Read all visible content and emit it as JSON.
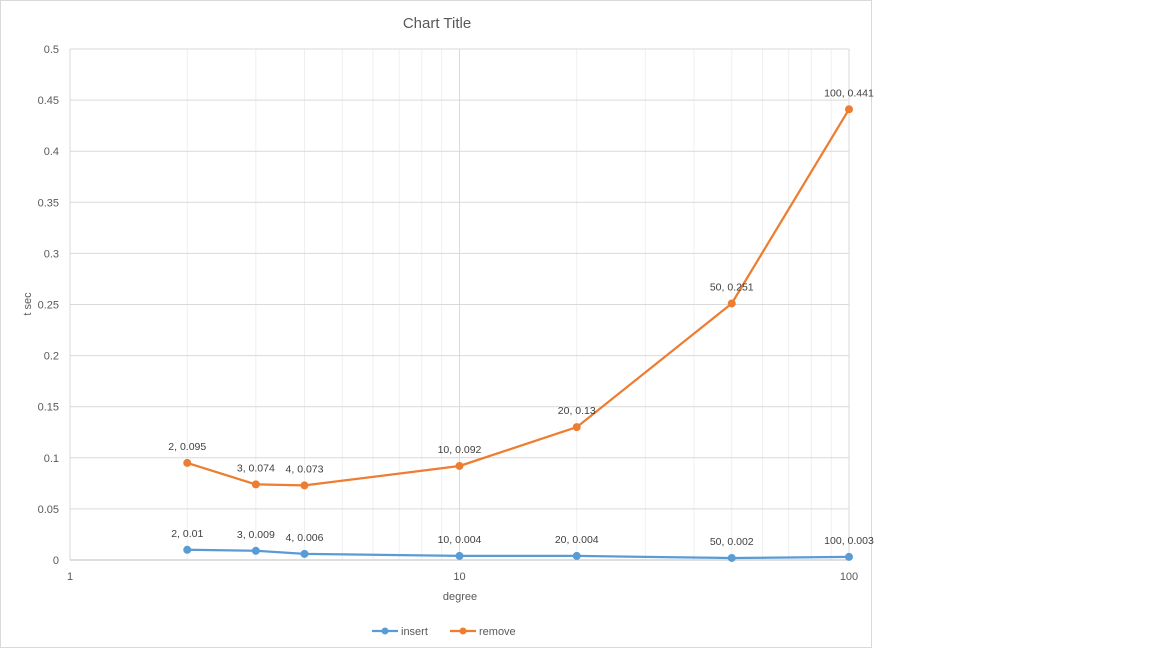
{
  "chart_data": {
    "type": "scatter",
    "title": "Chart Title",
    "xlabel": "degree",
    "ylabel": "t sec",
    "xscale": "log",
    "xlim": [
      1,
      100
    ],
    "ylim": [
      0,
      0.5
    ],
    "xticks": [
      "1",
      "10",
      "100"
    ],
    "yticks": [
      "0",
      "0.05",
      "0.1",
      "0.15",
      "0.2",
      "0.25",
      "0.3",
      "0.35",
      "0.4",
      "0.45",
      "0.5"
    ],
    "grid": true,
    "legend_position": "bottom",
    "series": [
      {
        "name": "insert",
        "color": "#5b9bd5",
        "x": [
          2,
          3,
          4,
          10,
          20,
          50,
          100
        ],
        "y": [
          0.01,
          0.009,
          0.006,
          0.004,
          0.004,
          0.002,
          0.003
        ],
        "labels": [
          "2, 0.01",
          "3, 0.009",
          "4, 0.006",
          "10, 0.004",
          "20, 0.004",
          "50, 0.002",
          "100, 0.003"
        ]
      },
      {
        "name": "remove",
        "color": "#ed7d31",
        "x": [
          2,
          3,
          4,
          10,
          20,
          50,
          100
        ],
        "y": [
          0.095,
          0.074,
          0.073,
          0.092,
          0.13,
          0.251,
          0.441
        ],
        "labels": [
          "2, 0.095",
          "3, 0.074",
          "4, 0.073",
          "10, 0.092",
          "20, 0.13",
          "50, 0.251",
          "100, 0.441"
        ]
      }
    ]
  }
}
